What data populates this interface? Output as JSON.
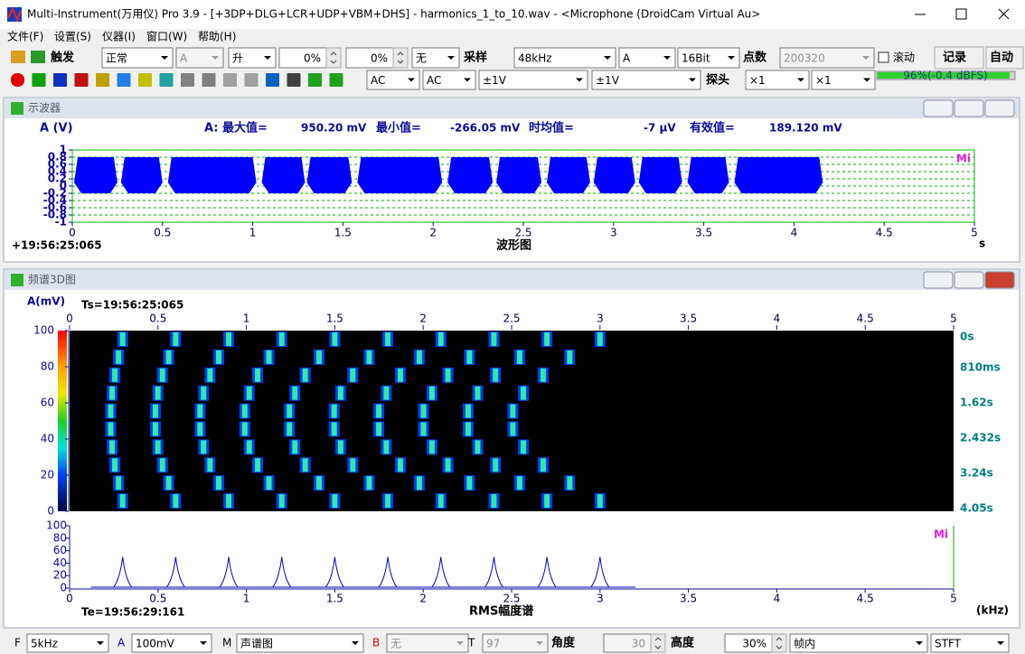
{
  "window": {
    "title": "Multi-Instrument(万用仪) Pro 3.9  -  [+3DP+DLG+LCR+UDP+VBM+DHS]  -  harmonics_1_to_10.wav  -  <Microphone (DroidCam Virtual Au>"
  },
  "menu": [
    "文件(F)",
    "设置(S)",
    "仪器(I)",
    "窗口(W)",
    "帮助(H)"
  ],
  "toolbar1": {
    "trigger": "触发",
    "mode": "正常",
    "channel": "A",
    "edge": "升",
    "level": "0%",
    "delay": "0%",
    "source": "无",
    "sampling_label": "采样",
    "sampling": "48kHz",
    "input": "A",
    "bits": "16Bit",
    "points_label": "点数",
    "points": "200320",
    "scroll": "滚动",
    "record": "记录",
    "auto": "自动"
  },
  "toolbar2": {
    "coupling_a": "AC",
    "coupling_b": "AC",
    "range_a": "±1V",
    "range_b": "±1V",
    "probe_label": "探头",
    "probe_a": "×1",
    "probe_b": "×1",
    "level_meter": "96%(-0.4 dBFS)"
  },
  "oscilloscope": {
    "panel_title": "示波器",
    "channel_label": "A (V)",
    "mi": "Mi",
    "timestamp": "+19:56:25:065",
    "stats": [
      {
        "label": "A: 最大值=",
        "value": "950.20 mV"
      },
      {
        "label": "最小值=",
        "value": "-266.05 mV"
      },
      {
        "label": "时均值=",
        "value": "-7  µV"
      },
      {
        "label": "有效值=",
        "value": "189.120 mV"
      }
    ]
  },
  "spectrum_panel": {
    "panel_title": "频谱3D图",
    "mi": "Mi"
  },
  "chart_data": [
    {
      "type": "waveform",
      "title": "波形图",
      "x_label": "s",
      "color": "#0000ff",
      "grid": true,
      "xlim": [
        0,
        5
      ],
      "xticks": [
        0,
        0.5,
        1,
        1.5,
        2,
        2.5,
        3,
        3.5,
        4,
        4.5,
        5
      ],
      "ylim": [
        -1,
        1
      ],
      "yticks": [
        1,
        0.8,
        0.6,
        0.4,
        0.2,
        0,
        -0.2,
        -0.4,
        -0.6,
        -0.8,
        -1
      ],
      "high": 0.8,
      "low": -0.2,
      "bursts": [
        {
          "start": 0.01,
          "end": 0.25
        },
        {
          "start": 0.27,
          "end": 0.5
        },
        {
          "start": 0.53,
          "end": 1.02
        },
        {
          "start": 1.05,
          "end": 1.29
        },
        {
          "start": 1.3,
          "end": 1.55
        },
        {
          "start": 1.58,
          "end": 2.05
        },
        {
          "start": 2.08,
          "end": 2.33
        },
        {
          "start": 2.35,
          "end": 2.6
        },
        {
          "start": 2.63,
          "end": 2.87
        },
        {
          "start": 2.89,
          "end": 3.12
        },
        {
          "start": 3.14,
          "end": 3.38
        },
        {
          "start": 3.41,
          "end": 3.64
        },
        {
          "start": 3.67,
          "end": 4.16
        }
      ]
    },
    {
      "type": "heatmap",
      "y_label": "A(mV)",
      "timestamp": "Ts=19:56:25:065",
      "xlim": [
        0,
        5
      ],
      "xticks": [
        0,
        0.5,
        1,
        1.5,
        2,
        2.5,
        3,
        3.5,
        4,
        4.5,
        5
      ],
      "ylim": [
        0,
        100
      ],
      "yticks": [
        0,
        20,
        40,
        60,
        80,
        100
      ],
      "time_labels": [
        "0s",
        "810ms",
        "1.62s",
        "2.432s",
        "3.24s",
        "4.05s"
      ]
    },
    {
      "type": "line",
      "title": "RMS幅度谱",
      "x_label": "(kHz)",
      "timestamp": "Te=19:56:29:161",
      "color": "#0000c0",
      "xlim": [
        0,
        5
      ],
      "xticks": [
        0,
        0.5,
        1,
        1.5,
        2,
        2.5,
        3,
        3.5,
        4,
        4.5,
        5
      ],
      "ylim": [
        0,
        100
      ],
      "yticks": [
        0,
        20,
        40,
        60,
        80,
        100
      ],
      "x": [
        0.3,
        0.6,
        0.9,
        1.2,
        1.5,
        1.8,
        2.1,
        2.4,
        2.7,
        3.0
      ],
      "values": [
        50,
        50,
        50,
        50,
        50,
        50,
        50,
        50,
        50,
        50
      ]
    }
  ],
  "status": {
    "f_label": "F",
    "f": "5kHz",
    "a_label": "A",
    "a": "100mV",
    "m_label": "M",
    "m": "声谱图",
    "b_label": "B",
    "b": "无",
    "t_label": "T",
    "t": "97",
    "angle_label": "角度",
    "angle": "30",
    "height_label": "高度",
    "height": "30%",
    "frame": "帧内",
    "method": "STFT"
  }
}
